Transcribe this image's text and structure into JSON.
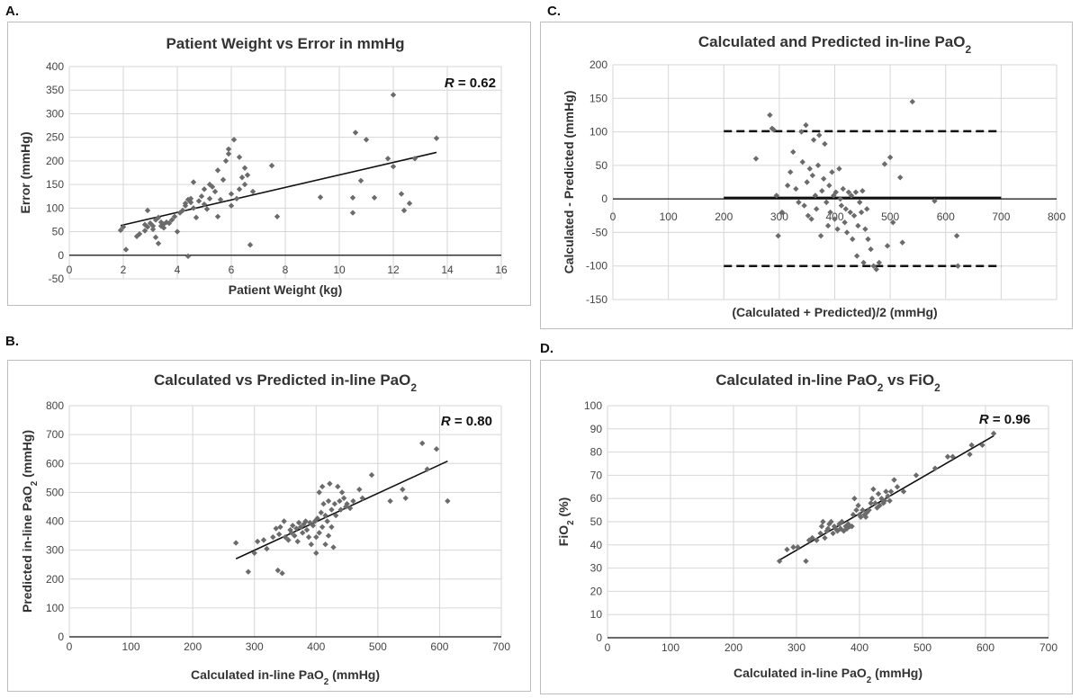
{
  "panels": {
    "a": {
      "label": "A."
    },
    "b": {
      "label": "B."
    },
    "c": {
      "label": "C."
    },
    "d": {
      "label": "D."
    }
  },
  "chart_data": [
    {
      "id": "a",
      "type": "scatter",
      "title": "Patient Weight vs Error in mmHg",
      "xlabel": "Patient Weight (kg)",
      "ylabel": "Error (mmHg)",
      "xlim": [
        0,
        16
      ],
      "ylim": [
        -50,
        400
      ],
      "xticks": [
        0,
        2,
        4,
        6,
        8,
        10,
        12,
        14,
        16
      ],
      "yticks": [
        -50,
        0,
        50,
        100,
        150,
        200,
        250,
        300,
        350,
        400
      ],
      "grid": true,
      "x_axis_at_y": 0,
      "annotation": {
        "r_italic": "R",
        "r_rest": " = 0.62"
      },
      "trendline": [
        [
          1.9,
          63
        ],
        [
          13.6,
          218
        ]
      ],
      "points": [
        [
          1.9,
          53
        ],
        [
          2.1,
          12
        ],
        [
          2.0,
          60
        ],
        [
          2.5,
          40
        ],
        [
          2.6,
          45
        ],
        [
          2.8,
          52
        ],
        [
          2.8,
          65
        ],
        [
          2.9,
          95
        ],
        [
          2.9,
          60
        ],
        [
          3.0,
          68
        ],
        [
          3.1,
          62
        ],
        [
          3.1,
          55
        ],
        [
          3.2,
          75
        ],
        [
          3.2,
          38
        ],
        [
          3.3,
          25
        ],
        [
          3.3,
          80
        ],
        [
          3.4,
          70
        ],
        [
          3.4,
          62
        ],
        [
          3.5,
          58
        ],
        [
          3.5,
          66
        ],
        [
          3.6,
          70
        ],
        [
          3.7,
          68
        ],
        [
          3.8,
          75
        ],
        [
          3.9,
          82
        ],
        [
          4.0,
          50
        ],
        [
          4.1,
          90
        ],
        [
          4.2,
          95
        ],
        [
          4.3,
          110
        ],
        [
          4.3,
          105
        ],
        [
          4.4,
          118
        ],
        [
          4.4,
          -2
        ],
        [
          4.5,
          112
        ],
        [
          4.5,
          120
        ],
        [
          4.6,
          155
        ],
        [
          4.6,
          100
        ],
        [
          4.7,
          80
        ],
        [
          4.8,
          115
        ],
        [
          4.9,
          125
        ],
        [
          5.0,
          140
        ],
        [
          5.0,
          108
        ],
        [
          5.1,
          98
        ],
        [
          5.2,
          150
        ],
        [
          5.2,
          120
        ],
        [
          5.3,
          145
        ],
        [
          5.4,
          135
        ],
        [
          5.5,
          180
        ],
        [
          5.5,
          82
        ],
        [
          5.6,
          118
        ],
        [
          5.7,
          160
        ],
        [
          5.8,
          200
        ],
        [
          5.9,
          225
        ],
        [
          5.9,
          215
        ],
        [
          6.0,
          105
        ],
        [
          6.0,
          130
        ],
        [
          6.1,
          245
        ],
        [
          6.2,
          120
        ],
        [
          6.3,
          140
        ],
        [
          6.3,
          208
        ],
        [
          6.4,
          165
        ],
        [
          6.5,
          150
        ],
        [
          6.5,
          185
        ],
        [
          6.6,
          170
        ],
        [
          6.7,
          22
        ],
        [
          6.8,
          135
        ],
        [
          7.5,
          190
        ],
        [
          7.7,
          82
        ],
        [
          9.3,
          123
        ],
        [
          10.5,
          90
        ],
        [
          10.5,
          122
        ],
        [
          10.6,
          260
        ],
        [
          10.8,
          158
        ],
        [
          11.0,
          245
        ],
        [
          11.3,
          122
        ],
        [
          11.8,
          205
        ],
        [
          12.0,
          340
        ],
        [
          12.0,
          188
        ],
        [
          12.3,
          130
        ],
        [
          12.4,
          95
        ],
        [
          12.6,
          110
        ],
        [
          12.8,
          205
        ],
        [
          13.6,
          248
        ]
      ]
    },
    {
      "id": "b",
      "type": "scatter",
      "title_main": "Calculated vs Predicted in-line PaO",
      "title_sub": "2",
      "xlabel_main": "Calculated in-line PaO",
      "xlabel_sub": "2",
      "xlabel_end": " (mmHg)",
      "ylabel_main": "Predicted in-line PaO",
      "ylabel_sub": "2",
      "ylabel_end": " (mmHg)",
      "xlim": [
        0,
        700
      ],
      "ylim": [
        0,
        800
      ],
      "xticks": [
        0,
        100,
        200,
        300,
        400,
        500,
        600,
        700
      ],
      "yticks": [
        0,
        100,
        200,
        300,
        400,
        500,
        600,
        700,
        800
      ],
      "grid": true,
      "annotation": {
        "r_italic": "R",
        "r_rest": " = 0.80"
      },
      "trendline": [
        [
          270,
          270
        ],
        [
          613,
          608
        ]
      ],
      "points": [
        [
          270,
          325
        ],
        [
          290,
          225
        ],
        [
          300,
          290
        ],
        [
          305,
          330
        ],
        [
          315,
          335
        ],
        [
          320,
          305
        ],
        [
          330,
          345
        ],
        [
          335,
          375
        ],
        [
          338,
          230
        ],
        [
          340,
          355
        ],
        [
          342,
          380
        ],
        [
          345,
          220
        ],
        [
          348,
          400
        ],
        [
          350,
          345
        ],
        [
          355,
          335
        ],
        [
          358,
          370
        ],
        [
          360,
          360
        ],
        [
          362,
          385
        ],
        [
          365,
          350
        ],
        [
          368,
          375
        ],
        [
          370,
          330
        ],
        [
          372,
          395
        ],
        [
          375,
          380
        ],
        [
          378,
          360
        ],
        [
          380,
          390
        ],
        [
          383,
          400
        ],
        [
          385,
          370
        ],
        [
          388,
          345
        ],
        [
          390,
          395
        ],
        [
          392,
          320
        ],
        [
          395,
          385
        ],
        [
          398,
          400
        ],
        [
          400,
          290
        ],
        [
          400,
          345
        ],
        [
          402,
          410
        ],
        [
          405,
          360
        ],
        [
          405,
          500
        ],
        [
          408,
          430
        ],
        [
          410,
          380
        ],
        [
          410,
          520
        ],
        [
          412,
          460
        ],
        [
          415,
          420
        ],
        [
          415,
          320
        ],
        [
          418,
          400
        ],
        [
          420,
          470
        ],
        [
          420,
          350
        ],
        [
          422,
          530
        ],
        [
          425,
          440
        ],
        [
          425,
          380
        ],
        [
          428,
          310
        ],
        [
          430,
          460
        ],
        [
          432,
          420
        ],
        [
          435,
          520
        ],
        [
          438,
          470
        ],
        [
          440,
          440
        ],
        [
          442,
          500
        ],
        [
          445,
          480
        ],
        [
          448,
          450
        ],
        [
          450,
          460
        ],
        [
          455,
          445
        ],
        [
          460,
          470
        ],
        [
          470,
          510
        ],
        [
          475,
          480
        ],
        [
          490,
          560
        ],
        [
          520,
          470
        ],
        [
          540,
          510
        ],
        [
          545,
          480
        ],
        [
          572,
          670
        ],
        [
          580,
          580
        ],
        [
          595,
          650
        ],
        [
          613,
          470
        ]
      ]
    },
    {
      "id": "c",
      "type": "scatter",
      "title_main": "Calculated and Predicted in-line PaO",
      "title_sub": "2",
      "xlabel": "(Calculated + Predicted)/2 (mmHg)",
      "ylabel": "Calculated - Predicted (mmHg)",
      "xlim": [
        0,
        800
      ],
      "ylim": [
        -150,
        200
      ],
      "xticks": [
        0,
        100,
        200,
        300,
        400,
        500,
        600,
        700,
        800
      ],
      "yticks": [
        -150,
        -100,
        -50,
        0,
        50,
        100,
        150,
        200
      ],
      "grid": true,
      "x_axis_at_y": 0,
      "mean_line": {
        "y": 2,
        "x_from": 200,
        "x_to": 700
      },
      "limit_lines": [
        {
          "y": 101,
          "x_from": 200,
          "x_to": 700
        },
        {
          "y": -100,
          "x_from": 200,
          "x_to": 700
        }
      ],
      "points": [
        [
          258,
          60
        ],
        [
          283,
          125
        ],
        [
          287,
          105
        ],
        [
          290,
          103
        ],
        [
          295,
          5
        ],
        [
          298,
          -55
        ],
        [
          305,
          -20
        ],
        [
          315,
          20
        ],
        [
          320,
          40
        ],
        [
          325,
          70
        ],
        [
          330,
          15
        ],
        [
          335,
          -5
        ],
        [
          340,
          100
        ],
        [
          342,
          55
        ],
        [
          345,
          -10
        ],
        [
          348,
          110
        ],
        [
          350,
          25
        ],
        [
          352,
          -25
        ],
        [
          355,
          45
        ],
        [
          358,
          -30
        ],
        [
          360,
          35
        ],
        [
          362,
          88
        ],
        [
          365,
          5
        ],
        [
          367,
          -15
        ],
        [
          370,
          50
        ],
        [
          372,
          95
        ],
        [
          375,
          -55
        ],
        [
          377,
          12
        ],
        [
          380,
          30
        ],
        [
          382,
          82
        ],
        [
          385,
          -5
        ],
        [
          388,
          -40
        ],
        [
          390,
          20
        ],
        [
          392,
          -20
        ],
        [
          395,
          40
        ],
        [
          398,
          5
        ],
        [
          400,
          -30
        ],
        [
          402,
          10
        ],
        [
          405,
          -45
        ],
        [
          408,
          45
        ],
        [
          410,
          0
        ],
        [
          412,
          -10
        ],
        [
          415,
          15
        ],
        [
          418,
          -35
        ],
        [
          420,
          -15
        ],
        [
          422,
          -50
        ],
        [
          425,
          10
        ],
        [
          428,
          -20
        ],
        [
          430,
          5
        ],
        [
          432,
          -60
        ],
        [
          435,
          -25
        ],
        [
          438,
          10
        ],
        [
          440,
          -85
        ],
        [
          442,
          -40
        ],
        [
          445,
          -5
        ],
        [
          448,
          -20
        ],
        [
          450,
          12
        ],
        [
          452,
          -95
        ],
        [
          455,
          -45
        ],
        [
          458,
          -15
        ],
        [
          460,
          -60
        ],
        [
          465,
          -75
        ],
        [
          470,
          -100
        ],
        [
          475,
          -105
        ],
        [
          480,
          -95
        ],
        [
          490,
          52
        ],
        [
          495,
          -70
        ],
        [
          500,
          62
        ],
        [
          505,
          -35
        ],
        [
          518,
          32
        ],
        [
          522,
          -65
        ],
        [
          540,
          145
        ],
        [
          580,
          -3
        ],
        [
          620,
          -55
        ],
        [
          622,
          -100
        ]
      ]
    },
    {
      "id": "d",
      "type": "scatter",
      "title_main": "Calculated in-line PaO",
      "title_sub": "2",
      "title_mid": " vs FiO",
      "title_sub2": "2",
      "xlabel_main": "Calculated in-line PaO",
      "xlabel_sub": "2",
      "xlabel_end": " (mmHg)",
      "ylabel_main": "FiO",
      "ylabel_sub": "2",
      "ylabel_end": " (%)",
      "xlim": [
        0,
        700
      ],
      "ylim": [
        0,
        100
      ],
      "xticks": [
        0,
        100,
        200,
        300,
        400,
        500,
        600,
        700
      ],
      "yticks": [
        0,
        10,
        20,
        30,
        40,
        50,
        60,
        70,
        80,
        90,
        100
      ],
      "grid": true,
      "annotation": {
        "r_italic": "R",
        "r_rest": " = 0.96"
      },
      "trendline": [
        [
          270,
          33
        ],
        [
          613,
          87
        ]
      ],
      "points": [
        [
          273,
          33
        ],
        [
          285,
          38
        ],
        [
          295,
          39
        ],
        [
          302,
          39
        ],
        [
          315,
          33
        ],
        [
          320,
          42
        ],
        [
          325,
          43
        ],
        [
          332,
          42
        ],
        [
          338,
          45
        ],
        [
          340,
          48
        ],
        [
          342,
          50
        ],
        [
          345,
          43
        ],
        [
          348,
          46
        ],
        [
          350,
          47
        ],
        [
          352,
          49
        ],
        [
          355,
          50
        ],
        [
          358,
          45
        ],
        [
          360,
          48
        ],
        [
          362,
          47
        ],
        [
          365,
          46
        ],
        [
          368,
          49
        ],
        [
          370,
          47
        ],
        [
          372,
          50
        ],
        [
          375,
          46
        ],
        [
          378,
          48
        ],
        [
          380,
          47
        ],
        [
          382,
          49
        ],
        [
          385,
          48
        ],
        [
          388,
          48
        ],
        [
          390,
          53
        ],
        [
          392,
          60
        ],
        [
          395,
          55
        ],
        [
          398,
          57
        ],
        [
          400,
          53
        ],
        [
          402,
          52
        ],
        [
          405,
          55
        ],
        [
          408,
          53
        ],
        [
          410,
          52
        ],
        [
          412,
          54
        ],
        [
          415,
          55
        ],
        [
          418,
          58
        ],
        [
          420,
          60
        ],
        [
          422,
          64
        ],
        [
          425,
          58
        ],
        [
          428,
          56
        ],
        [
          430,
          62
        ],
        [
          432,
          57
        ],
        [
          435,
          60
        ],
        [
          438,
          58
        ],
        [
          440,
          59
        ],
        [
          442,
          63
        ],
        [
          445,
          61
        ],
        [
          448,
          59
        ],
        [
          450,
          63
        ],
        [
          455,
          68
        ],
        [
          460,
          65
        ],
        [
          470,
          63
        ],
        [
          490,
          70
        ],
        [
          520,
          73
        ],
        [
          540,
          78
        ],
        [
          548,
          78
        ],
        [
          575,
          79
        ],
        [
          578,
          83
        ],
        [
          595,
          83
        ],
        [
          613,
          88
        ]
      ]
    }
  ]
}
